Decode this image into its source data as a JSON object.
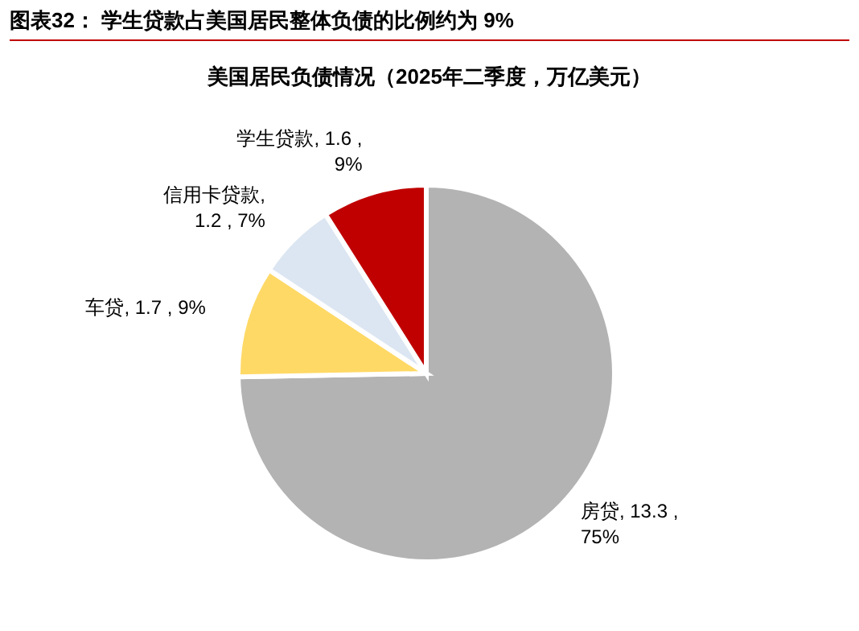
{
  "chart_data": {
    "type": "pie",
    "title": "图表32： 学生贷款占美国居民整体负债的比例约为 9%",
    "subtitle": "美国居民负债情况（2025年二季度，万亿美元）",
    "categories": [
      "房贷",
      "车贷",
      "信用卡贷款",
      "学生贷款"
    ],
    "values": [
      13.3,
      1.7,
      1.2,
      1.6
    ],
    "colors": [
      "#b3b3b3",
      "#ffd966",
      "#dce6f2",
      "#c00000"
    ],
    "value_labels": [
      ", 13.3 ,\n75%",
      ", 1.7 , 9%",
      ",\n1.2 , 7%",
      ", 1.6 ,\n9%"
    ]
  }
}
